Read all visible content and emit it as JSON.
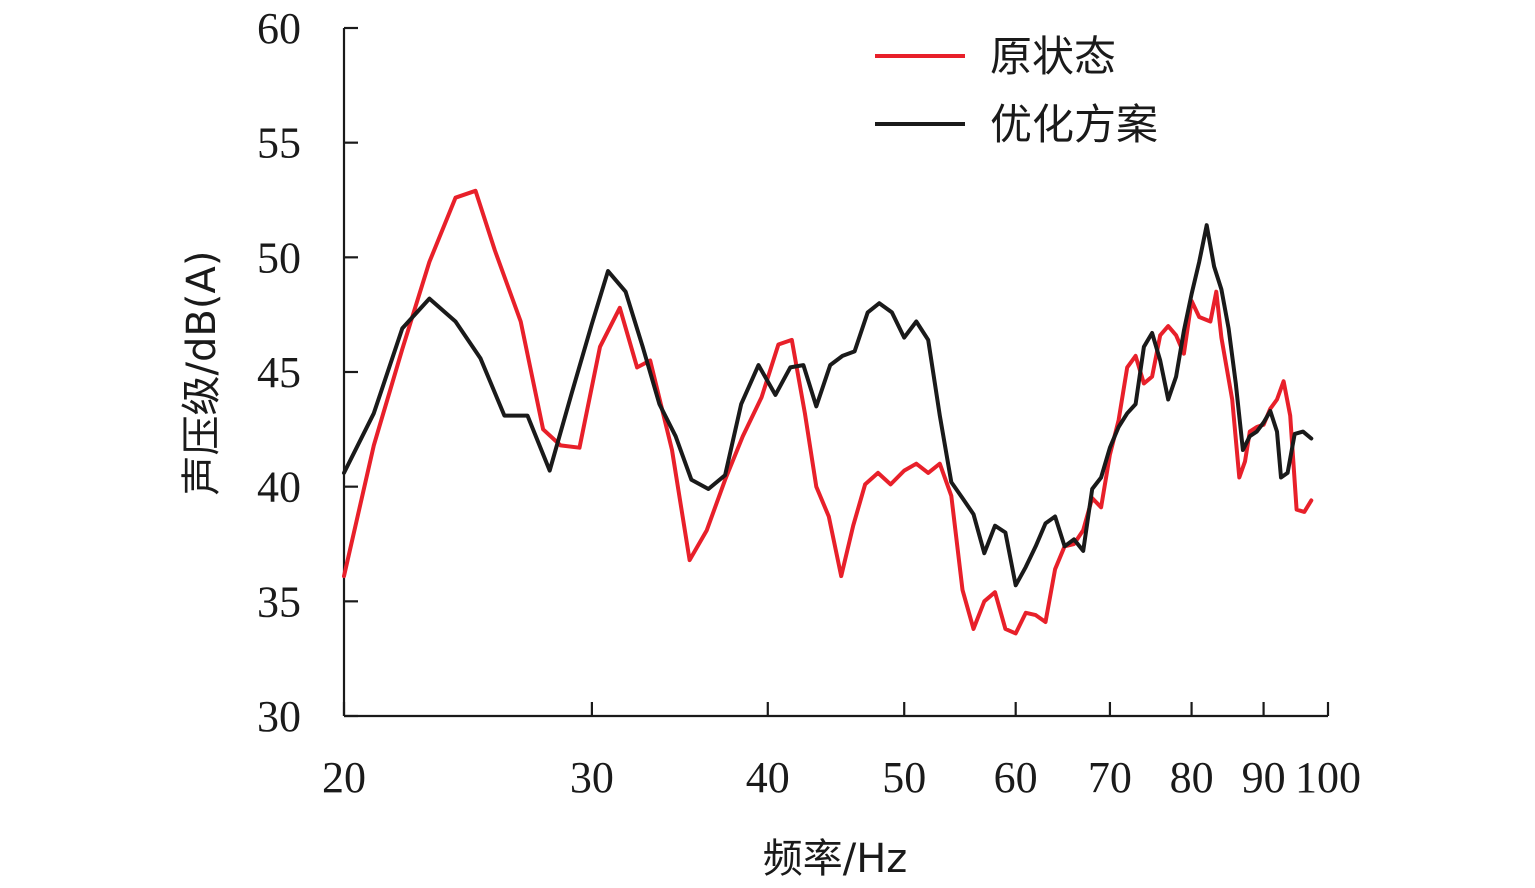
{
  "chart_data": {
    "type": "line",
    "xlabel": "频率/Hz",
    "ylabel": "声压级/dB(A)",
    "x_scale": "log",
    "xlim": [
      20,
      100
    ],
    "ylim": [
      30,
      60
    ],
    "x_ticks": [
      20,
      30,
      40,
      50,
      60,
      70,
      80,
      90,
      100
    ],
    "y_ticks": [
      30,
      35,
      40,
      45,
      50,
      55,
      60
    ],
    "grid": false,
    "legend_position": "top-right",
    "series": [
      {
        "name": "原状态",
        "color": "#e8202a",
        "points": [
          [
            20.0,
            36.1
          ],
          [
            21.0,
            41.8
          ],
          [
            22.0,
            46.0
          ],
          [
            23.0,
            49.8
          ],
          [
            24.0,
            52.6
          ],
          [
            24.8,
            52.9
          ],
          [
            25.6,
            50.3
          ],
          [
            26.7,
            47.2
          ],
          [
            27.7,
            42.5
          ],
          [
            28.5,
            41.8
          ],
          [
            29.4,
            41.7
          ],
          [
            30.4,
            46.1
          ],
          [
            31.4,
            47.8
          ],
          [
            32.3,
            45.2
          ],
          [
            33.0,
            45.5
          ],
          [
            34.2,
            41.6
          ],
          [
            35.2,
            36.8
          ],
          [
            36.2,
            38.1
          ],
          [
            37.3,
            40.3
          ],
          [
            38.4,
            42.2
          ],
          [
            39.6,
            43.9
          ],
          [
            40.7,
            46.2
          ],
          [
            41.6,
            46.4
          ],
          [
            42.5,
            43.2
          ],
          [
            43.3,
            40.0
          ],
          [
            44.2,
            38.7
          ],
          [
            45.1,
            36.1
          ],
          [
            46.0,
            38.3
          ],
          [
            46.9,
            40.1
          ],
          [
            47.9,
            40.6
          ],
          [
            48.9,
            40.1
          ],
          [
            50.0,
            40.7
          ],
          [
            51.0,
            41.0
          ],
          [
            52.0,
            40.6
          ],
          [
            53.0,
            41.0
          ],
          [
            54.0,
            39.6
          ],
          [
            55.0,
            35.5
          ],
          [
            56.0,
            33.8
          ],
          [
            57.0,
            35.0
          ],
          [
            58.0,
            35.4
          ],
          [
            59.0,
            33.8
          ],
          [
            60.0,
            33.6
          ],
          [
            61.0,
            34.5
          ],
          [
            62.0,
            34.4
          ],
          [
            63.0,
            34.1
          ],
          [
            64.0,
            36.4
          ],
          [
            65.0,
            37.4
          ],
          [
            66.0,
            37.5
          ],
          [
            67.0,
            38.1
          ],
          [
            68.0,
            39.5
          ],
          [
            69.0,
            39.1
          ],
          [
            70.0,
            41.4
          ],
          [
            71.0,
            42.9
          ],
          [
            72.0,
            45.2
          ],
          [
            73.0,
            45.7
          ],
          [
            74.0,
            44.5
          ],
          [
            75.0,
            44.8
          ],
          [
            76.0,
            46.6
          ],
          [
            77.0,
            47.0
          ],
          [
            78.0,
            46.6
          ],
          [
            79.0,
            45.8
          ],
          [
            80.0,
            48.1
          ],
          [
            81.0,
            47.4
          ],
          [
            82.5,
            47.2
          ],
          [
            83.3,
            48.5
          ],
          [
            84.0,
            46.5
          ],
          [
            85.5,
            43.8
          ],
          [
            86.5,
            40.4
          ],
          [
            87.3,
            41.1
          ],
          [
            88.0,
            42.4
          ],
          [
            89.0,
            42.6
          ],
          [
            90.0,
            42.7
          ],
          [
            91.0,
            43.4
          ],
          [
            92.0,
            43.8
          ],
          [
            93.0,
            44.6
          ],
          [
            94.0,
            43.1
          ],
          [
            95.0,
            39.0
          ],
          [
            96.2,
            38.9
          ],
          [
            97.3,
            39.4
          ]
        ]
      },
      {
        "name": "优化方案",
        "color": "#1a1a1a",
        "points": [
          [
            20.0,
            40.6
          ],
          [
            21.0,
            43.2
          ],
          [
            22.0,
            46.9
          ],
          [
            23.0,
            48.2
          ],
          [
            24.0,
            47.2
          ],
          [
            25.0,
            45.6
          ],
          [
            26.0,
            43.1
          ],
          [
            27.0,
            43.1
          ],
          [
            28.0,
            40.7
          ],
          [
            29.0,
            44.0
          ],
          [
            30.0,
            47.1
          ],
          [
            30.8,
            49.4
          ],
          [
            31.7,
            48.5
          ],
          [
            32.6,
            46.1
          ],
          [
            33.5,
            43.6
          ],
          [
            34.4,
            42.2
          ],
          [
            35.3,
            40.3
          ],
          [
            36.3,
            39.9
          ],
          [
            37.3,
            40.5
          ],
          [
            38.3,
            43.6
          ],
          [
            39.4,
            45.3
          ],
          [
            40.5,
            44.0
          ],
          [
            41.5,
            45.2
          ],
          [
            42.4,
            45.3
          ],
          [
            43.3,
            43.5
          ],
          [
            44.3,
            45.3
          ],
          [
            45.2,
            45.7
          ],
          [
            46.1,
            45.9
          ],
          [
            47.1,
            47.6
          ],
          [
            48.0,
            48.0
          ],
          [
            49.0,
            47.6
          ],
          [
            50.0,
            46.5
          ],
          [
            51.0,
            47.2
          ],
          [
            52.0,
            46.4
          ],
          [
            53.0,
            43.1
          ],
          [
            54.0,
            40.2
          ],
          [
            55.0,
            39.5
          ],
          [
            56.0,
            38.8
          ],
          [
            57.0,
            37.1
          ],
          [
            58.0,
            38.3
          ],
          [
            59.0,
            38.0
          ],
          [
            60.0,
            35.7
          ],
          [
            61.0,
            36.5
          ],
          [
            62.0,
            37.4
          ],
          [
            63.0,
            38.4
          ],
          [
            64.0,
            38.7
          ],
          [
            65.0,
            37.4
          ],
          [
            66.0,
            37.7
          ],
          [
            67.0,
            37.2
          ],
          [
            68.0,
            39.9
          ],
          [
            69.0,
            40.4
          ],
          [
            70.0,
            41.7
          ],
          [
            71.0,
            42.6
          ],
          [
            72.0,
            43.2
          ],
          [
            73.0,
            43.6
          ],
          [
            74.0,
            46.1
          ],
          [
            75.0,
            46.7
          ],
          [
            76.0,
            45.5
          ],
          [
            77.0,
            43.8
          ],
          [
            78.0,
            44.8
          ],
          [
            79.0,
            46.8
          ],
          [
            80.0,
            48.4
          ],
          [
            81.0,
            49.8
          ],
          [
            82.0,
            51.4
          ],
          [
            83.0,
            49.6
          ],
          [
            84.0,
            48.6
          ],
          [
            85.0,
            46.9
          ],
          [
            86.0,
            44.5
          ],
          [
            87.0,
            41.6
          ],
          [
            88.0,
            42.2
          ],
          [
            89.0,
            42.4
          ],
          [
            90.0,
            42.8
          ],
          [
            91.0,
            43.3
          ],
          [
            92.0,
            42.4
          ],
          [
            92.6,
            40.4
          ],
          [
            93.6,
            40.6
          ],
          [
            94.7,
            42.3
          ],
          [
            96.0,
            42.4
          ],
          [
            97.3,
            42.1
          ]
        ]
      }
    ]
  }
}
